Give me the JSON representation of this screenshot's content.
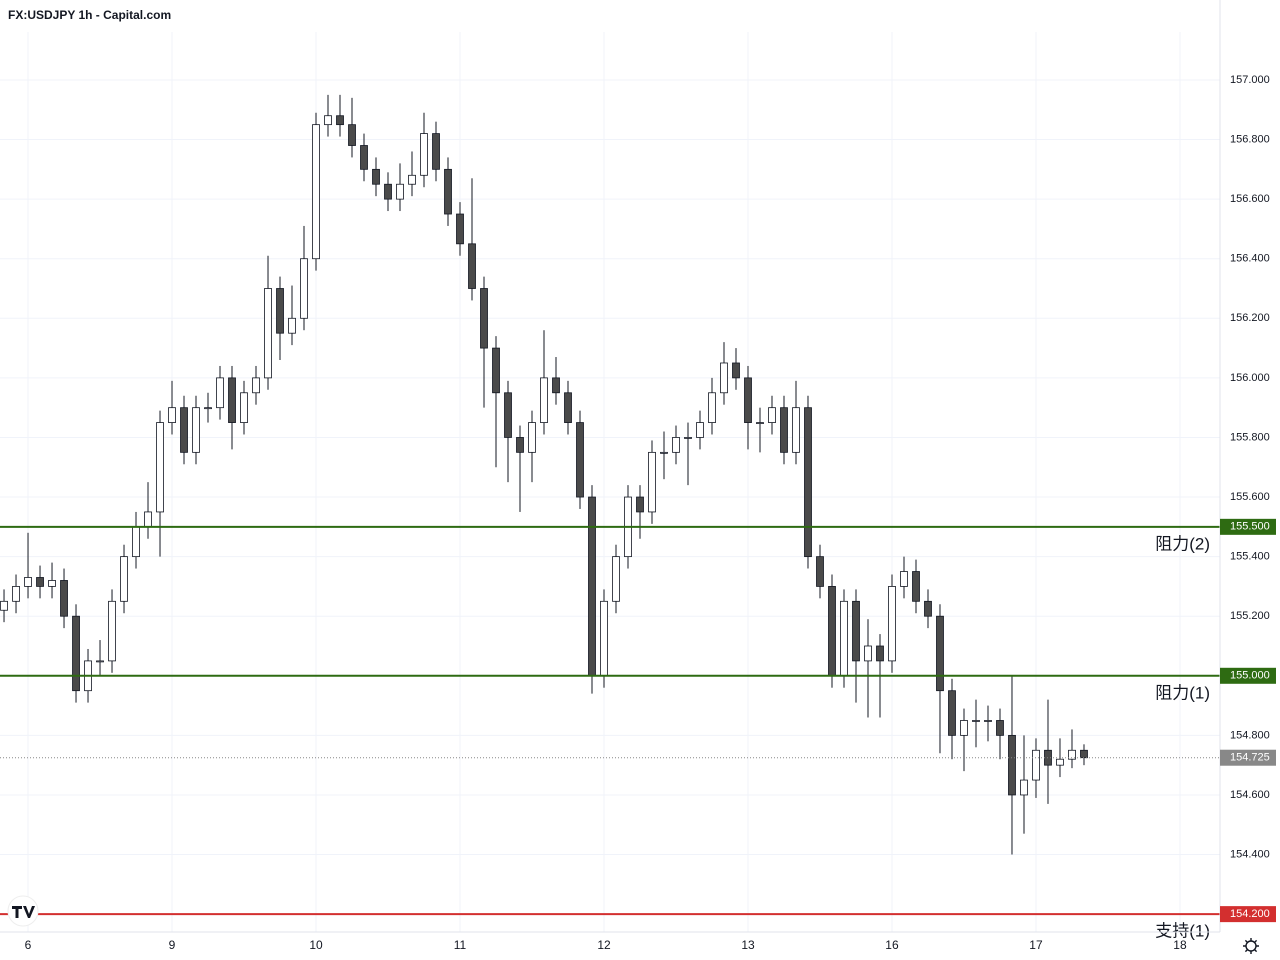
{
  "chart_data": {
    "type": "candlestick",
    "title": "FX:USDJPY 1h - Capital.com",
    "x": [
      -4,
      -2,
      0,
      2,
      4,
      6,
      8,
      10,
      12,
      14,
      16,
      18,
      20,
      22,
      24,
      26,
      28,
      30,
      32,
      34,
      36,
      38,
      40,
      42,
      44,
      46,
      48,
      50,
      52,
      54,
      56,
      58,
      60,
      62,
      64,
      66,
      68,
      70,
      72,
      74,
      76,
      78,
      80,
      82,
      84,
      86,
      88,
      90,
      92,
      94,
      96,
      98,
      100,
      102,
      104,
      106,
      108,
      110,
      112,
      114,
      116,
      118,
      120,
      122,
      124,
      126,
      128,
      130,
      132,
      134,
      136,
      138,
      140,
      142,
      144,
      146,
      148,
      150,
      152,
      154,
      156,
      158,
      160,
      162,
      164,
      166,
      168,
      170,
      172,
      174,
      176
    ],
    "open": [
      155.22,
      155.25,
      155.3,
      155.33,
      155.3,
      155.32,
      155.2,
      154.95,
      155.05,
      155.05,
      155.25,
      155.4,
      155.5,
      155.55,
      155.85,
      155.9,
      155.75,
      155.9,
      155.9,
      156.0,
      155.85,
      155.95,
      156.0,
      156.3,
      156.15,
      156.2,
      156.4,
      156.85,
      156.88,
      156.85,
      156.78,
      156.7,
      156.65,
      156.6,
      156.65,
      156.68,
      156.82,
      156.7,
      156.55,
      156.45,
      156.3,
      156.1,
      155.95,
      155.8,
      155.75,
      155.85,
      156.0,
      155.95,
      155.85,
      155.6,
      155.0,
      155.25,
      155.4,
      155.6,
      155.55,
      155.75,
      155.75,
      155.8,
      155.8,
      155.85,
      155.95,
      156.05,
      156.0,
      155.85,
      155.85,
      155.9,
      155.75,
      155.9,
      155.4,
      155.3,
      155.0,
      155.25,
      155.05,
      155.1,
      155.05,
      155.3,
      155.35,
      155.25,
      155.2,
      154.95,
      154.8,
      154.85,
      154.85,
      154.85,
      154.8,
      154.6,
      154.65,
      154.75,
      154.7,
      154.72,
      154.75
    ],
    "high": [
      155.29,
      155.34,
      155.48,
      155.37,
      155.38,
      155.36,
      155.24,
      155.09,
      155.12,
      155.29,
      155.44,
      155.55,
      155.65,
      155.89,
      155.99,
      155.94,
      155.94,
      155.95,
      156.04,
      156.04,
      155.99,
      156.04,
      156.41,
      156.34,
      156.31,
      156.51,
      156.89,
      156.95,
      156.95,
      156.94,
      156.82,
      156.74,
      156.69,
      156.72,
      156.76,
      156.89,
      156.86,
      156.74,
      156.59,
      156.67,
      156.34,
      156.14,
      155.99,
      155.84,
      155.89,
      156.16,
      156.07,
      155.99,
      155.89,
      155.64,
      155.29,
      155.44,
      155.64,
      155.64,
      155.79,
      155.82,
      155.84,
      155.85,
      155.89,
      156.0,
      156.12,
      156.1,
      156.04,
      155.9,
      155.94,
      155.94,
      155.99,
      155.94,
      155.44,
      155.34,
      155.29,
      155.29,
      155.19,
      155.14,
      155.34,
      155.4,
      155.39,
      155.29,
      155.24,
      154.99,
      154.89,
      154.92,
      154.9,
      154.89,
      155.0,
      154.8,
      154.79,
      154.92,
      154.79,
      154.82,
      154.77
    ],
    "low": [
      155.18,
      155.21,
      155.26,
      155.26,
      155.26,
      155.16,
      154.91,
      154.91,
      155.0,
      155.01,
      155.21,
      155.36,
      155.46,
      155.4,
      155.81,
      155.71,
      155.71,
      155.85,
      155.86,
      155.76,
      155.81,
      155.91,
      155.96,
      156.06,
      156.11,
      156.16,
      156.36,
      156.81,
      156.81,
      156.74,
      156.66,
      156.61,
      156.56,
      156.56,
      156.61,
      156.64,
      156.66,
      156.51,
      156.41,
      156.26,
      155.9,
      155.7,
      155.65,
      155.55,
      155.65,
      155.81,
      155.91,
      155.81,
      155.56,
      154.94,
      154.96,
      155.21,
      155.36,
      155.46,
      155.51,
      155.66,
      155.71,
      155.64,
      155.76,
      155.81,
      155.91,
      155.96,
      155.76,
      155.75,
      155.81,
      155.71,
      155.71,
      155.36,
      155.26,
      154.96,
      154.96,
      154.91,
      154.86,
      154.86,
      155.01,
      155.26,
      155.21,
      155.16,
      154.74,
      154.72,
      154.68,
      154.76,
      154.78,
      154.72,
      154.4,
      154.47,
      154.59,
      154.57,
      154.66,
      154.69,
      154.7
    ],
    "close": [
      155.25,
      155.3,
      155.33,
      155.3,
      155.32,
      155.2,
      154.95,
      155.05,
      155.05,
      155.25,
      155.4,
      155.5,
      155.55,
      155.85,
      155.9,
      155.75,
      155.9,
      155.9,
      156.0,
      155.85,
      155.95,
      156.0,
      156.3,
      156.15,
      156.2,
      156.4,
      156.85,
      156.88,
      156.85,
      156.78,
      156.7,
      156.65,
      156.6,
      156.65,
      156.68,
      156.82,
      156.7,
      156.55,
      156.45,
      156.3,
      156.1,
      155.95,
      155.8,
      155.75,
      155.85,
      156.0,
      155.95,
      155.85,
      155.6,
      155.0,
      155.25,
      155.4,
      155.6,
      155.55,
      155.75,
      155.75,
      155.8,
      155.8,
      155.85,
      155.95,
      156.05,
      156.0,
      155.85,
      155.85,
      155.9,
      155.75,
      155.9,
      155.4,
      155.3,
      155.0,
      155.25,
      155.05,
      155.1,
      155.05,
      155.3,
      155.35,
      155.25,
      155.2,
      154.95,
      154.8,
      154.85,
      154.85,
      154.85,
      154.8,
      154.6,
      154.65,
      154.75,
      154.7,
      154.72,
      154.75,
      154.725
    ],
    "up_color": "#ffffff",
    "down_color": "#4a4a4a",
    "xlim": [
      -4.67,
      198.67
    ],
    "xticks": [
      {
        "value": 0,
        "label": "6"
      },
      {
        "value": 24,
        "label": "9"
      },
      {
        "value": 48,
        "label": "10"
      },
      {
        "value": 72,
        "label": "11"
      },
      {
        "value": 96,
        "label": "12"
      },
      {
        "value": 120,
        "label": "13"
      },
      {
        "value": 144,
        "label": "16"
      },
      {
        "value": 168,
        "label": "17"
      },
      {
        "value": 192,
        "label": "18"
      }
    ],
    "ylim": [
      154.14,
      157.161
    ],
    "yticks": [
      {
        "value": 154.4,
        "label": "154.400"
      },
      {
        "value": 154.6,
        "label": "154.600"
      },
      {
        "value": 154.8,
        "label": "154.800"
      },
      {
        "value": 155.0,
        "label": "155.000"
      },
      {
        "value": 155.2,
        "label": "155.200"
      },
      {
        "value": 155.4,
        "label": "155.400"
      },
      {
        "value": 155.6,
        "label": "155.600"
      },
      {
        "value": 155.8,
        "label": "155.800"
      },
      {
        "value": 156.0,
        "label": "156.000"
      },
      {
        "value": 156.2,
        "label": "156.200"
      },
      {
        "value": 156.4,
        "label": "156.400"
      },
      {
        "value": 156.6,
        "label": "156.600"
      },
      {
        "value": 156.8,
        "label": "156.800"
      },
      {
        "value": 157.0,
        "label": "157.000"
      }
    ],
    "grid": true,
    "levels": [
      {
        "value": 155.5,
        "label": "155.500",
        "name": "阻力(2)",
        "color": "#2e6b12"
      },
      {
        "value": 155.0,
        "label": "155.000",
        "name": "阻力(1)",
        "color": "#2e6b12"
      },
      {
        "value": 154.2,
        "label": "154.200",
        "name": "支持(1)",
        "color": "#d32f2f"
      }
    ],
    "last": {
      "value": 154.725,
      "label": "154.725",
      "color": "#888888"
    }
  }
}
